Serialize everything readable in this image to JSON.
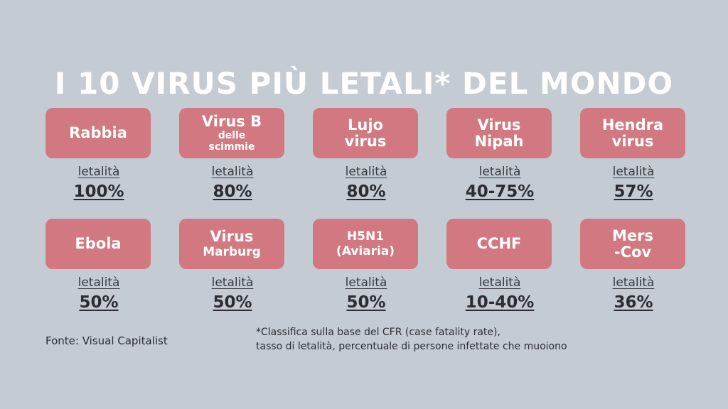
{
  "title": "I 10 VIRUS PIÙ LETALI* DEL MONDO",
  "label": "letalità",
  "viruses": [
    {
      "name_lines": [
        "Rabbia"
      ],
      "value": "100%"
    },
    {
      "name_lines": [
        "Virus B",
        "delle",
        "scimmie"
      ],
      "value": "80%"
    },
    {
      "name_lines": [
        "Lujo",
        "virus"
      ],
      "value": "80%"
    },
    {
      "name_lines": [
        "Virus",
        "Nipah"
      ],
      "value": "40-75%"
    },
    {
      "name_lines": [
        "Hendra",
        "virus"
      ],
      "value": "57%"
    },
    {
      "name_lines": [
        "Ebola"
      ],
      "value": "50%"
    },
    {
      "name_lines": [
        "Virus",
        "Marburg"
      ],
      "value": "50%"
    },
    {
      "name_lines": [
        "H5N1",
        "(Aviaria)"
      ],
      "value": "50%"
    },
    {
      "name_lines": [
        "CCHF"
      ],
      "value": "10-40%"
    },
    {
      "name_lines": [
        "Mers",
        "-Cov"
      ],
      "value": "36%"
    }
  ],
  "source": "Fonte: Visual Capitalist",
  "footnote": [
    "*Classifica sulla base del CFR (case fatality rate),",
    "tasso di letalità, percentuale di persone infettate che muoiono"
  ],
  "colors": {
    "background": "#c4cbd3",
    "box": "#d27880",
    "title": "#ffffff",
    "text": "#2d2d31"
  }
}
